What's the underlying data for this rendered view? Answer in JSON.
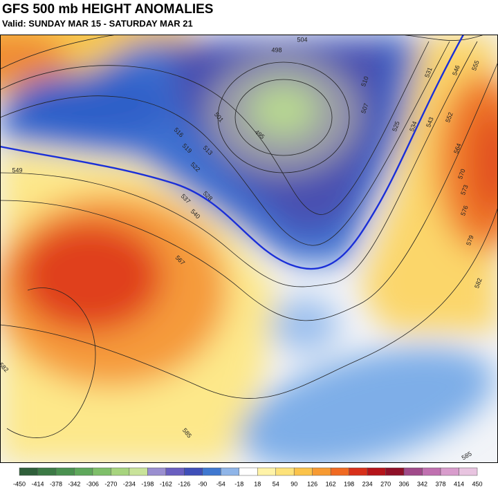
{
  "title": "GFS 500 mb HEIGHT ANOMALIES",
  "subtitle": "Valid: SUNDAY MAR 15 - SATURDAY MAR 21",
  "contour_labels": [
    498,
    504,
    510,
    507,
    501,
    495,
    516,
    519,
    513,
    522,
    528,
    537,
    540,
    525,
    531,
    534,
    543,
    546,
    555,
    552,
    564,
    570,
    573,
    576,
    579,
    582,
    549,
    567,
    582,
    585,
    585
  ],
  "colorbar": {
    "ticks": [
      -450,
      -414,
      -378,
      -342,
      -306,
      -270,
      -234,
      -198,
      -162,
      -126,
      -90,
      -54,
      -18,
      18,
      54,
      90,
      126,
      162,
      198,
      234,
      270,
      306,
      342,
      378,
      414,
      450
    ],
    "colors": [
      "#2f5f3a",
      "#3c7a45",
      "#4a9150",
      "#5fa85c",
      "#7fbf6a",
      "#a7d47e",
      "#c9e39a",
      "#9a8fd0",
      "#6a5fc0",
      "#3f4fb8",
      "#3f78d0",
      "#8fb5e8",
      "#ffffff",
      "#fff3a8",
      "#fde27a",
      "#fbc34a",
      "#f79a32",
      "#f06a22",
      "#d8301a",
      "#b5141a",
      "#8f1028",
      "#a04a8a",
      "#c070b0",
      "#d89ccc",
      "#e8c4e0"
    ]
  }
}
